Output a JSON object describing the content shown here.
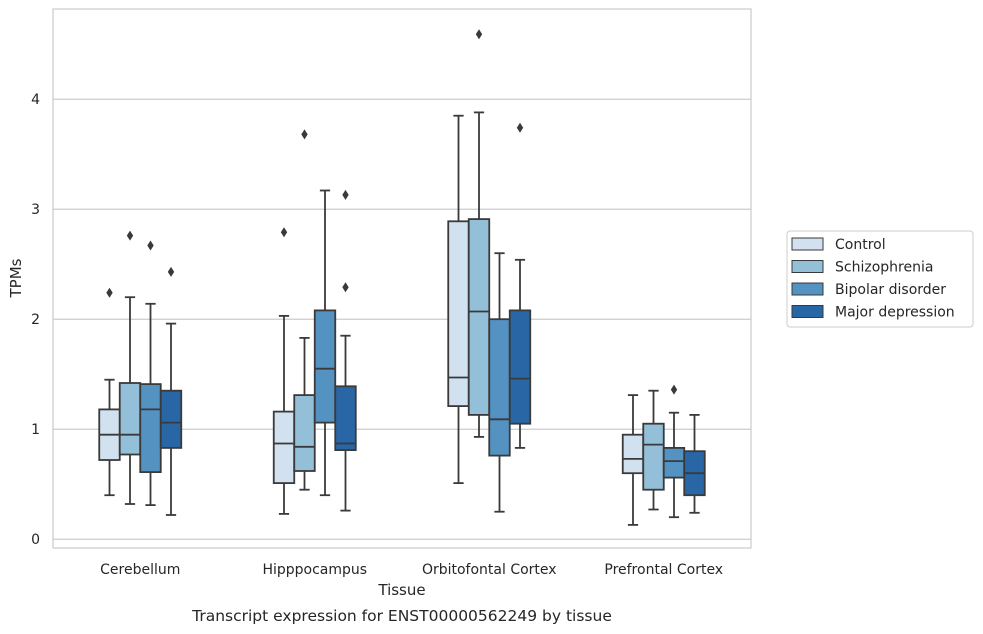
{
  "chart_data": {
    "type": "box",
    "xlabel": "Tissue",
    "ylabel": "TPMs",
    "caption": "Transcript expression for ENST00000562249 by tissue",
    "ylim": [
      -0.08,
      4.82
    ],
    "yticks": [
      0,
      1,
      2,
      3,
      4
    ],
    "grid": "horizontal",
    "legend_position": "right",
    "categories": [
      "Cerebellum",
      "Hipppocampus",
      "Orbitofontal Cortex",
      "Prefrontal Cortex"
    ],
    "series": [
      {
        "name": "Control",
        "color": "#d1e1f0",
        "boxes": [
          {
            "whisker_low": 0.4,
            "q1": 0.72,
            "median": 0.95,
            "q3": 1.18,
            "whisker_high": 1.45,
            "outliers": [
              2.24
            ]
          },
          {
            "whisker_low": 0.23,
            "q1": 0.51,
            "median": 0.87,
            "q3": 1.16,
            "whisker_high": 2.03,
            "outliers": [
              2.79
            ]
          },
          {
            "whisker_low": 0.51,
            "q1": 1.21,
            "median": 1.47,
            "q3": 2.89,
            "whisker_high": 3.85,
            "outliers": []
          },
          {
            "whisker_low": 0.13,
            "q1": 0.6,
            "median": 0.73,
            "q3": 0.95,
            "whisker_high": 1.31,
            "outliers": []
          }
        ]
      },
      {
        "name": "Schizophrenia",
        "color": "#94bfd9",
        "boxes": [
          {
            "whisker_low": 0.32,
            "q1": 0.77,
            "median": 0.95,
            "q3": 1.42,
            "whisker_high": 2.2,
            "outliers": [
              2.76
            ]
          },
          {
            "whisker_low": 0.45,
            "q1": 0.62,
            "median": 0.84,
            "q3": 1.31,
            "whisker_high": 1.83,
            "outliers": [
              3.68
            ]
          },
          {
            "whisker_low": 0.93,
            "q1": 1.13,
            "median": 2.07,
            "q3": 2.91,
            "whisker_high": 3.88,
            "outliers": [
              4.59
            ]
          },
          {
            "whisker_low": 0.27,
            "q1": 0.45,
            "median": 0.86,
            "q3": 1.05,
            "whisker_high": 1.35,
            "outliers": []
          }
        ]
      },
      {
        "name": "Bipolar disorder",
        "color": "#5492c2",
        "boxes": [
          {
            "whisker_low": 0.31,
            "q1": 0.61,
            "median": 1.18,
            "q3": 1.41,
            "whisker_high": 2.14,
            "outliers": [
              2.67
            ]
          },
          {
            "whisker_low": 0.4,
            "q1": 1.06,
            "median": 1.55,
            "q3": 2.08,
            "whisker_high": 3.17,
            "outliers": []
          },
          {
            "whisker_low": 0.25,
            "q1": 0.76,
            "median": 1.09,
            "q3": 2.0,
            "whisker_high": 2.6,
            "outliers": []
          },
          {
            "whisker_low": 0.2,
            "q1": 0.56,
            "median": 0.71,
            "q3": 0.83,
            "whisker_high": 1.15,
            "outliers": [
              1.36
            ]
          }
        ]
      },
      {
        "name": "Major depression",
        "color": "#2966a6",
        "boxes": [
          {
            "whisker_low": 0.22,
            "q1": 0.83,
            "median": 1.06,
            "q3": 1.35,
            "whisker_high": 1.96,
            "outliers": [
              2.43
            ]
          },
          {
            "whisker_low": 0.26,
            "q1": 0.81,
            "median": 0.87,
            "q3": 1.39,
            "whisker_high": 1.85,
            "outliers": [
              3.13,
              2.29
            ]
          },
          {
            "whisker_low": 0.83,
            "q1": 1.05,
            "median": 1.46,
            "q3": 2.08,
            "whisker_high": 2.54,
            "outliers": [
              3.74
            ]
          },
          {
            "whisker_low": 0.24,
            "q1": 0.4,
            "median": 0.6,
            "q3": 0.8,
            "whisker_high": 1.13,
            "outliers": []
          }
        ]
      }
    ]
  }
}
